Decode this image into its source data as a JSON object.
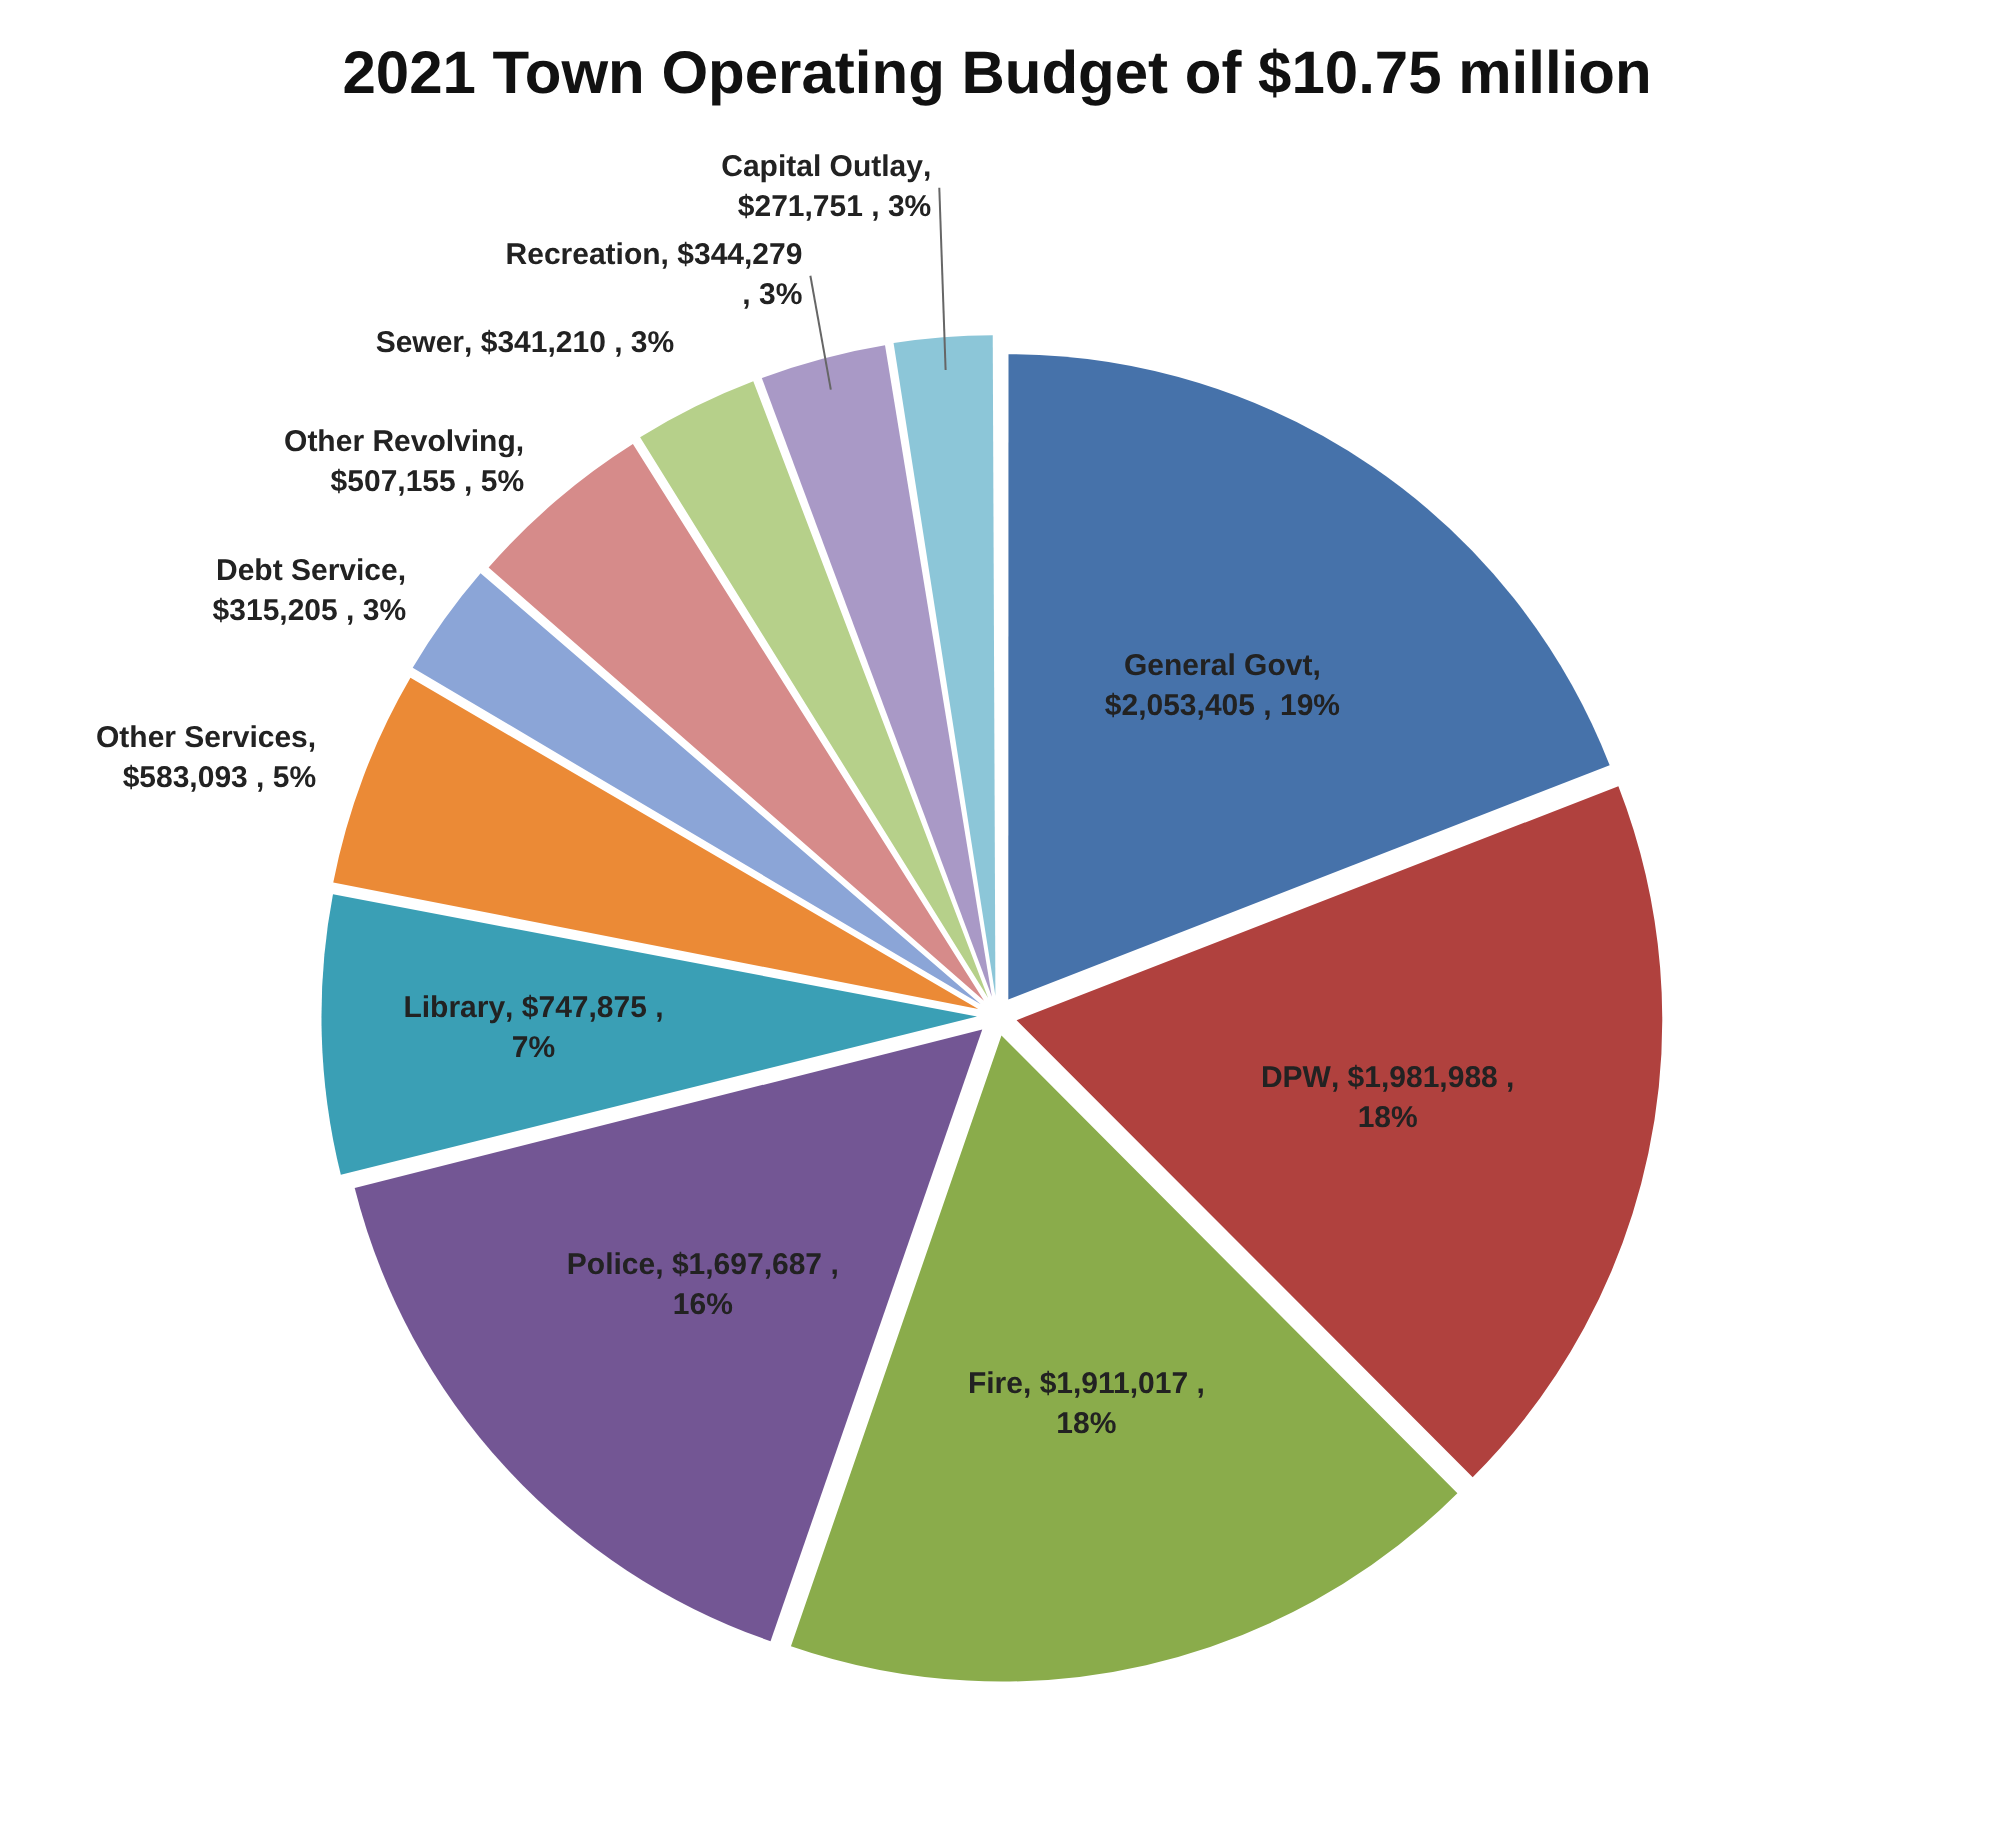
{
  "chart_data": {
    "type": "pie",
    "title": "2021 Town Operating Budget of $10.75 million",
    "categories": [
      "General Govt",
      "DPW",
      "Fire",
      "Police",
      "Library",
      "Other Services",
      "Debt Service",
      "Other Revolving",
      "Sewer",
      "Recreation",
      "Capital Outlay"
    ],
    "values": [
      2053405,
      1981988,
      1911017,
      1697687,
      747875,
      583093,
      315205,
      507155,
      341210,
      344279,
      271751
    ],
    "colors": [
      "#4672aa",
      "#b0413e",
      "#8aac4b",
      "#735694",
      "#3a9fb5",
      "#eb8a36",
      "#8ba5d7",
      "#d68b8a",
      "#b6d08a",
      "#a999c6",
      "#8cc6d8"
    ],
    "value_labels": [
      ", $2,053,405 , 19%",
      ", $1,981,988 , 18%",
      ", $1,911,017 , 18%",
      ", $1,697,687 , 16%",
      ", $747,875 , 7%",
      ", $583,093 , 5%",
      ", $315,205 , 3%",
      ", $507,155 , 5%",
      ", $341,210 , 3%",
      ", $344,279 , 3%",
      ", $271,751 , 3%"
    ]
  }
}
